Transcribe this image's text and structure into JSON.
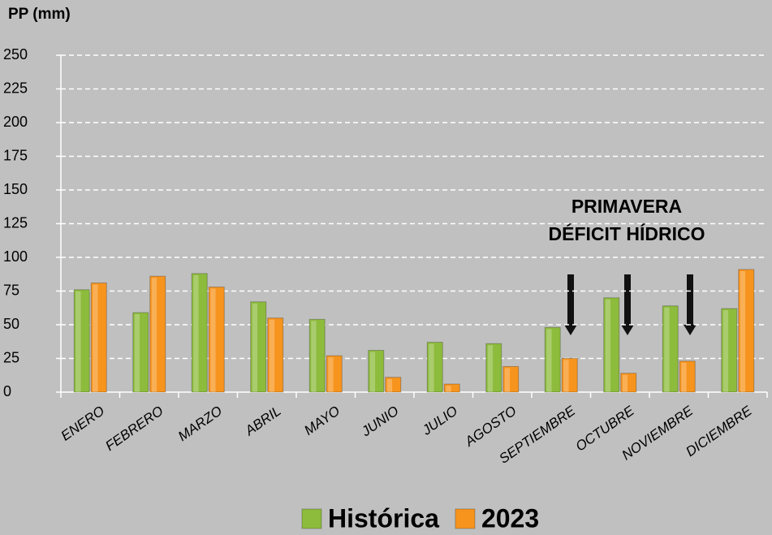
{
  "chart_data": {
    "type": "bar",
    "ylabel": "PP (mm)",
    "categories": [
      "ENERO",
      "FEBRERO",
      "MARZO",
      "ABRIL",
      "MAYO",
      "JUNIO",
      "JULIO",
      "AGOSTO",
      "SEPTIEMBRE",
      "OCTUBRE",
      "NOVIEMBRE",
      "DICIEMBRE"
    ],
    "series": [
      {
        "name": "Histórica",
        "color": "#8dbb3c",
        "values": [
          76,
          59,
          88,
          67,
          54,
          31,
          37,
          36,
          48,
          70,
          64,
          62
        ]
      },
      {
        "name": "2023",
        "color": "#f7941d",
        "values": [
          81,
          86,
          78,
          55,
          27,
          11,
          6,
          19,
          25,
          14,
          23,
          91
        ]
      }
    ],
    "annotations": [
      "PRIMAVERA",
      "DÉFICIT HÍDRICO"
    ],
    "ylim": [
      0,
      250
    ],
    "yticks": [
      0,
      25,
      50,
      75,
      100,
      125,
      150,
      175,
      200,
      225,
      250
    ],
    "grid": true,
    "legend": "bottom"
  }
}
